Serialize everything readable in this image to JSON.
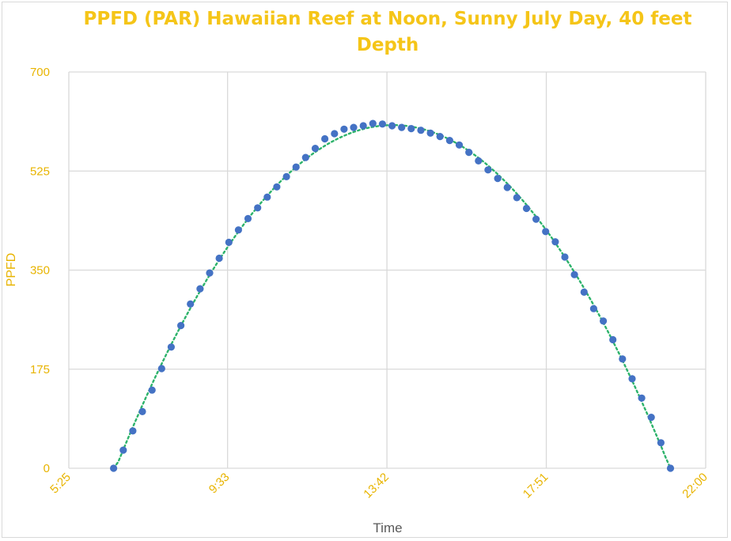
{
  "chart_data": {
    "type": "scatter",
    "title": "PPFD (PAR) Hawaiian Reef at Noon, Sunny July Day, 40 feet Depth",
    "xlabel": "Time",
    "ylabel": "PPFD",
    "x_ticks": [
      "5:25",
      "9:33",
      "13:42",
      "17:51",
      "22:00"
    ],
    "xlim": [
      "5:25",
      "22:00"
    ],
    "y_ticks": [
      "0",
      "175",
      "350",
      "525",
      "700"
    ],
    "ylim": [
      0,
      700
    ],
    "grid": true,
    "trendline": "polynomial (dotted)",
    "colors": {
      "marker": "#4472c4",
      "trendline": "#2db36b",
      "title": "#f5c518",
      "ticks": "#e8b400",
      "grid": "#d9d9d9"
    },
    "points": [
      {
        "x": "6:35",
        "y": 0
      },
      {
        "x": "6:50",
        "y": 32
      },
      {
        "x": "7:05",
        "y": 66
      },
      {
        "x": "7:20",
        "y": 100
      },
      {
        "x": "7:35",
        "y": 138
      },
      {
        "x": "7:50",
        "y": 176
      },
      {
        "x": "8:05",
        "y": 214
      },
      {
        "x": "8:20",
        "y": 252
      },
      {
        "x": "8:35",
        "y": 290
      },
      {
        "x": "8:50",
        "y": 317
      },
      {
        "x": "9:05",
        "y": 345
      },
      {
        "x": "9:20",
        "y": 371
      },
      {
        "x": "9:35",
        "y": 399
      },
      {
        "x": "9:50",
        "y": 421
      },
      {
        "x": "10:05",
        "y": 441
      },
      {
        "x": "10:20",
        "y": 460
      },
      {
        "x": "10:35",
        "y": 479
      },
      {
        "x": "10:50",
        "y": 497
      },
      {
        "x": "11:05",
        "y": 515
      },
      {
        "x": "11:20",
        "y": 532
      },
      {
        "x": "11:35",
        "y": 549
      },
      {
        "x": "11:50",
        "y": 565
      },
      {
        "x": "12:05",
        "y": 582
      },
      {
        "x": "12:20",
        "y": 591
      },
      {
        "x": "12:35",
        "y": 599
      },
      {
        "x": "12:50",
        "y": 602
      },
      {
        "x": "13:05",
        "y": 605
      },
      {
        "x": "13:20",
        "y": 609
      },
      {
        "x": "13:35",
        "y": 608
      },
      {
        "x": "13:50",
        "y": 605
      },
      {
        "x": "14:05",
        "y": 602
      },
      {
        "x": "14:20",
        "y": 600
      },
      {
        "x": "14:35",
        "y": 597
      },
      {
        "x": "14:50",
        "y": 592
      },
      {
        "x": "15:05",
        "y": 586
      },
      {
        "x": "15:20",
        "y": 579
      },
      {
        "x": "15:35",
        "y": 571
      },
      {
        "x": "15:50",
        "y": 558
      },
      {
        "x": "16:05",
        "y": 543
      },
      {
        "x": "16:20",
        "y": 527
      },
      {
        "x": "16:35",
        "y": 512
      },
      {
        "x": "16:50",
        "y": 496
      },
      {
        "x": "17:05",
        "y": 478
      },
      {
        "x": "17:20",
        "y": 459
      },
      {
        "x": "17:35",
        "y": 440
      },
      {
        "x": "17:50",
        "y": 418
      },
      {
        "x": "18:05",
        "y": 400
      },
      {
        "x": "18:20",
        "y": 373
      },
      {
        "x": "18:35",
        "y": 342
      },
      {
        "x": "18:50",
        "y": 311
      },
      {
        "x": "19:05",
        "y": 282
      },
      {
        "x": "19:20",
        "y": 260
      },
      {
        "x": "19:35",
        "y": 227
      },
      {
        "x": "19:50",
        "y": 193
      },
      {
        "x": "20:05",
        "y": 158
      },
      {
        "x": "20:20",
        "y": 124
      },
      {
        "x": "20:35",
        "y": 90
      },
      {
        "x": "20:50",
        "y": 45
      },
      {
        "x": "21:05",
        "y": 0
      }
    ]
  }
}
